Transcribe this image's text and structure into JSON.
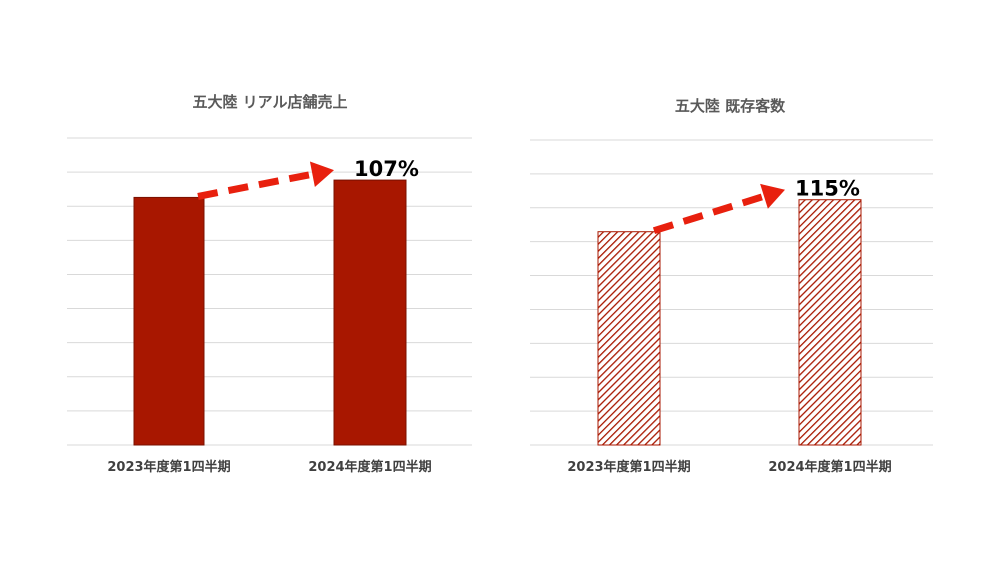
{
  "chart_data": [
    {
      "type": "bar",
      "title": "五大陸 リアル店舗売上",
      "categories": [
        "2023年度第1四半期",
        "2024年度第1四半期"
      ],
      "values": [
        100,
        107
      ],
      "ylim": [
        0,
        124
      ],
      "grid": true,
      "bar_fill": "solid",
      "annotation": "107%",
      "colors": {
        "bar": "#a81700",
        "bar_stroke": "#7a1000",
        "arrow": "#e8200e"
      }
    },
    {
      "type": "bar",
      "title": "五大陸 既存客数",
      "categories": [
        "2023年度第1四半期",
        "2024年度第1四半期"
      ],
      "values": [
        100,
        115
      ],
      "ylim": [
        0,
        143
      ],
      "grid": true,
      "bar_fill": "hatched",
      "annotation": "115%",
      "colors": {
        "bar": "#a81700",
        "bar_stroke": "#a81700",
        "arrow": "#e8200e"
      }
    }
  ]
}
